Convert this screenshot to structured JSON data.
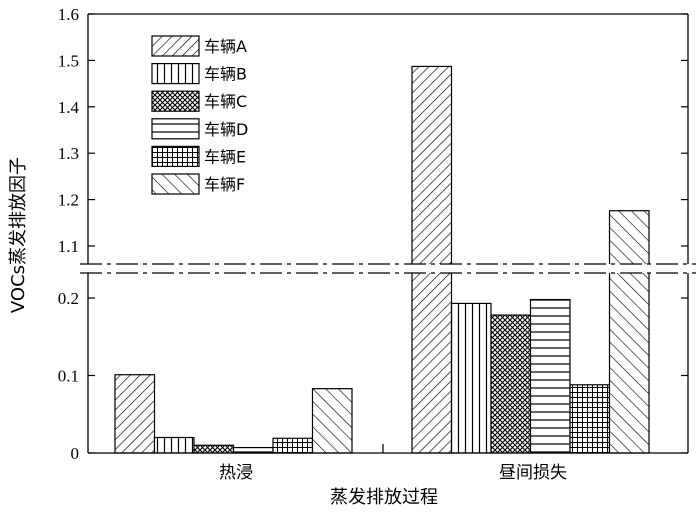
{
  "chart_data": {
    "type": "bar",
    "xlabel": "蒸发排放过程",
    "ylabel": "VOCs蒸发排放因子",
    "categories": [
      "热浸",
      "昼间损失"
    ],
    "axis_break": {
      "lower_range": [
        0,
        0.25
      ],
      "upper_range": [
        1.05,
        1.6
      ]
    },
    "upper_ticks": [
      "1.6",
      "1.5",
      "1.4",
      "1.3",
      "1.2",
      "1.1"
    ],
    "upper_tick_values": [
      1.6,
      1.5,
      1.4,
      1.3,
      1.2,
      1.1
    ],
    "lower_ticks": [
      "0.2",
      "0.1",
      "0"
    ],
    "lower_tick_values": [
      0.2,
      0.1,
      0
    ],
    "legend_position": "top-left",
    "grid": false,
    "series": [
      {
        "name": "车辆A",
        "pattern": "diag-right",
        "values": [
          0.101,
          1.487
        ]
      },
      {
        "name": "车辆B",
        "pattern": "vertical",
        "values": [
          0.02,
          0.193
        ]
      },
      {
        "name": "车辆C",
        "pattern": "crosshatch",
        "values": [
          0.01,
          0.178
        ]
      },
      {
        "name": "车辆D",
        "pattern": "horizontal",
        "values": [
          0.007,
          0.198
        ]
      },
      {
        "name": "车辆E",
        "pattern": "grid",
        "values": [
          0.019,
          0.088
        ]
      },
      {
        "name": "车辆F",
        "pattern": "diag-left",
        "values": [
          0.083,
          1.176
        ]
      }
    ]
  }
}
